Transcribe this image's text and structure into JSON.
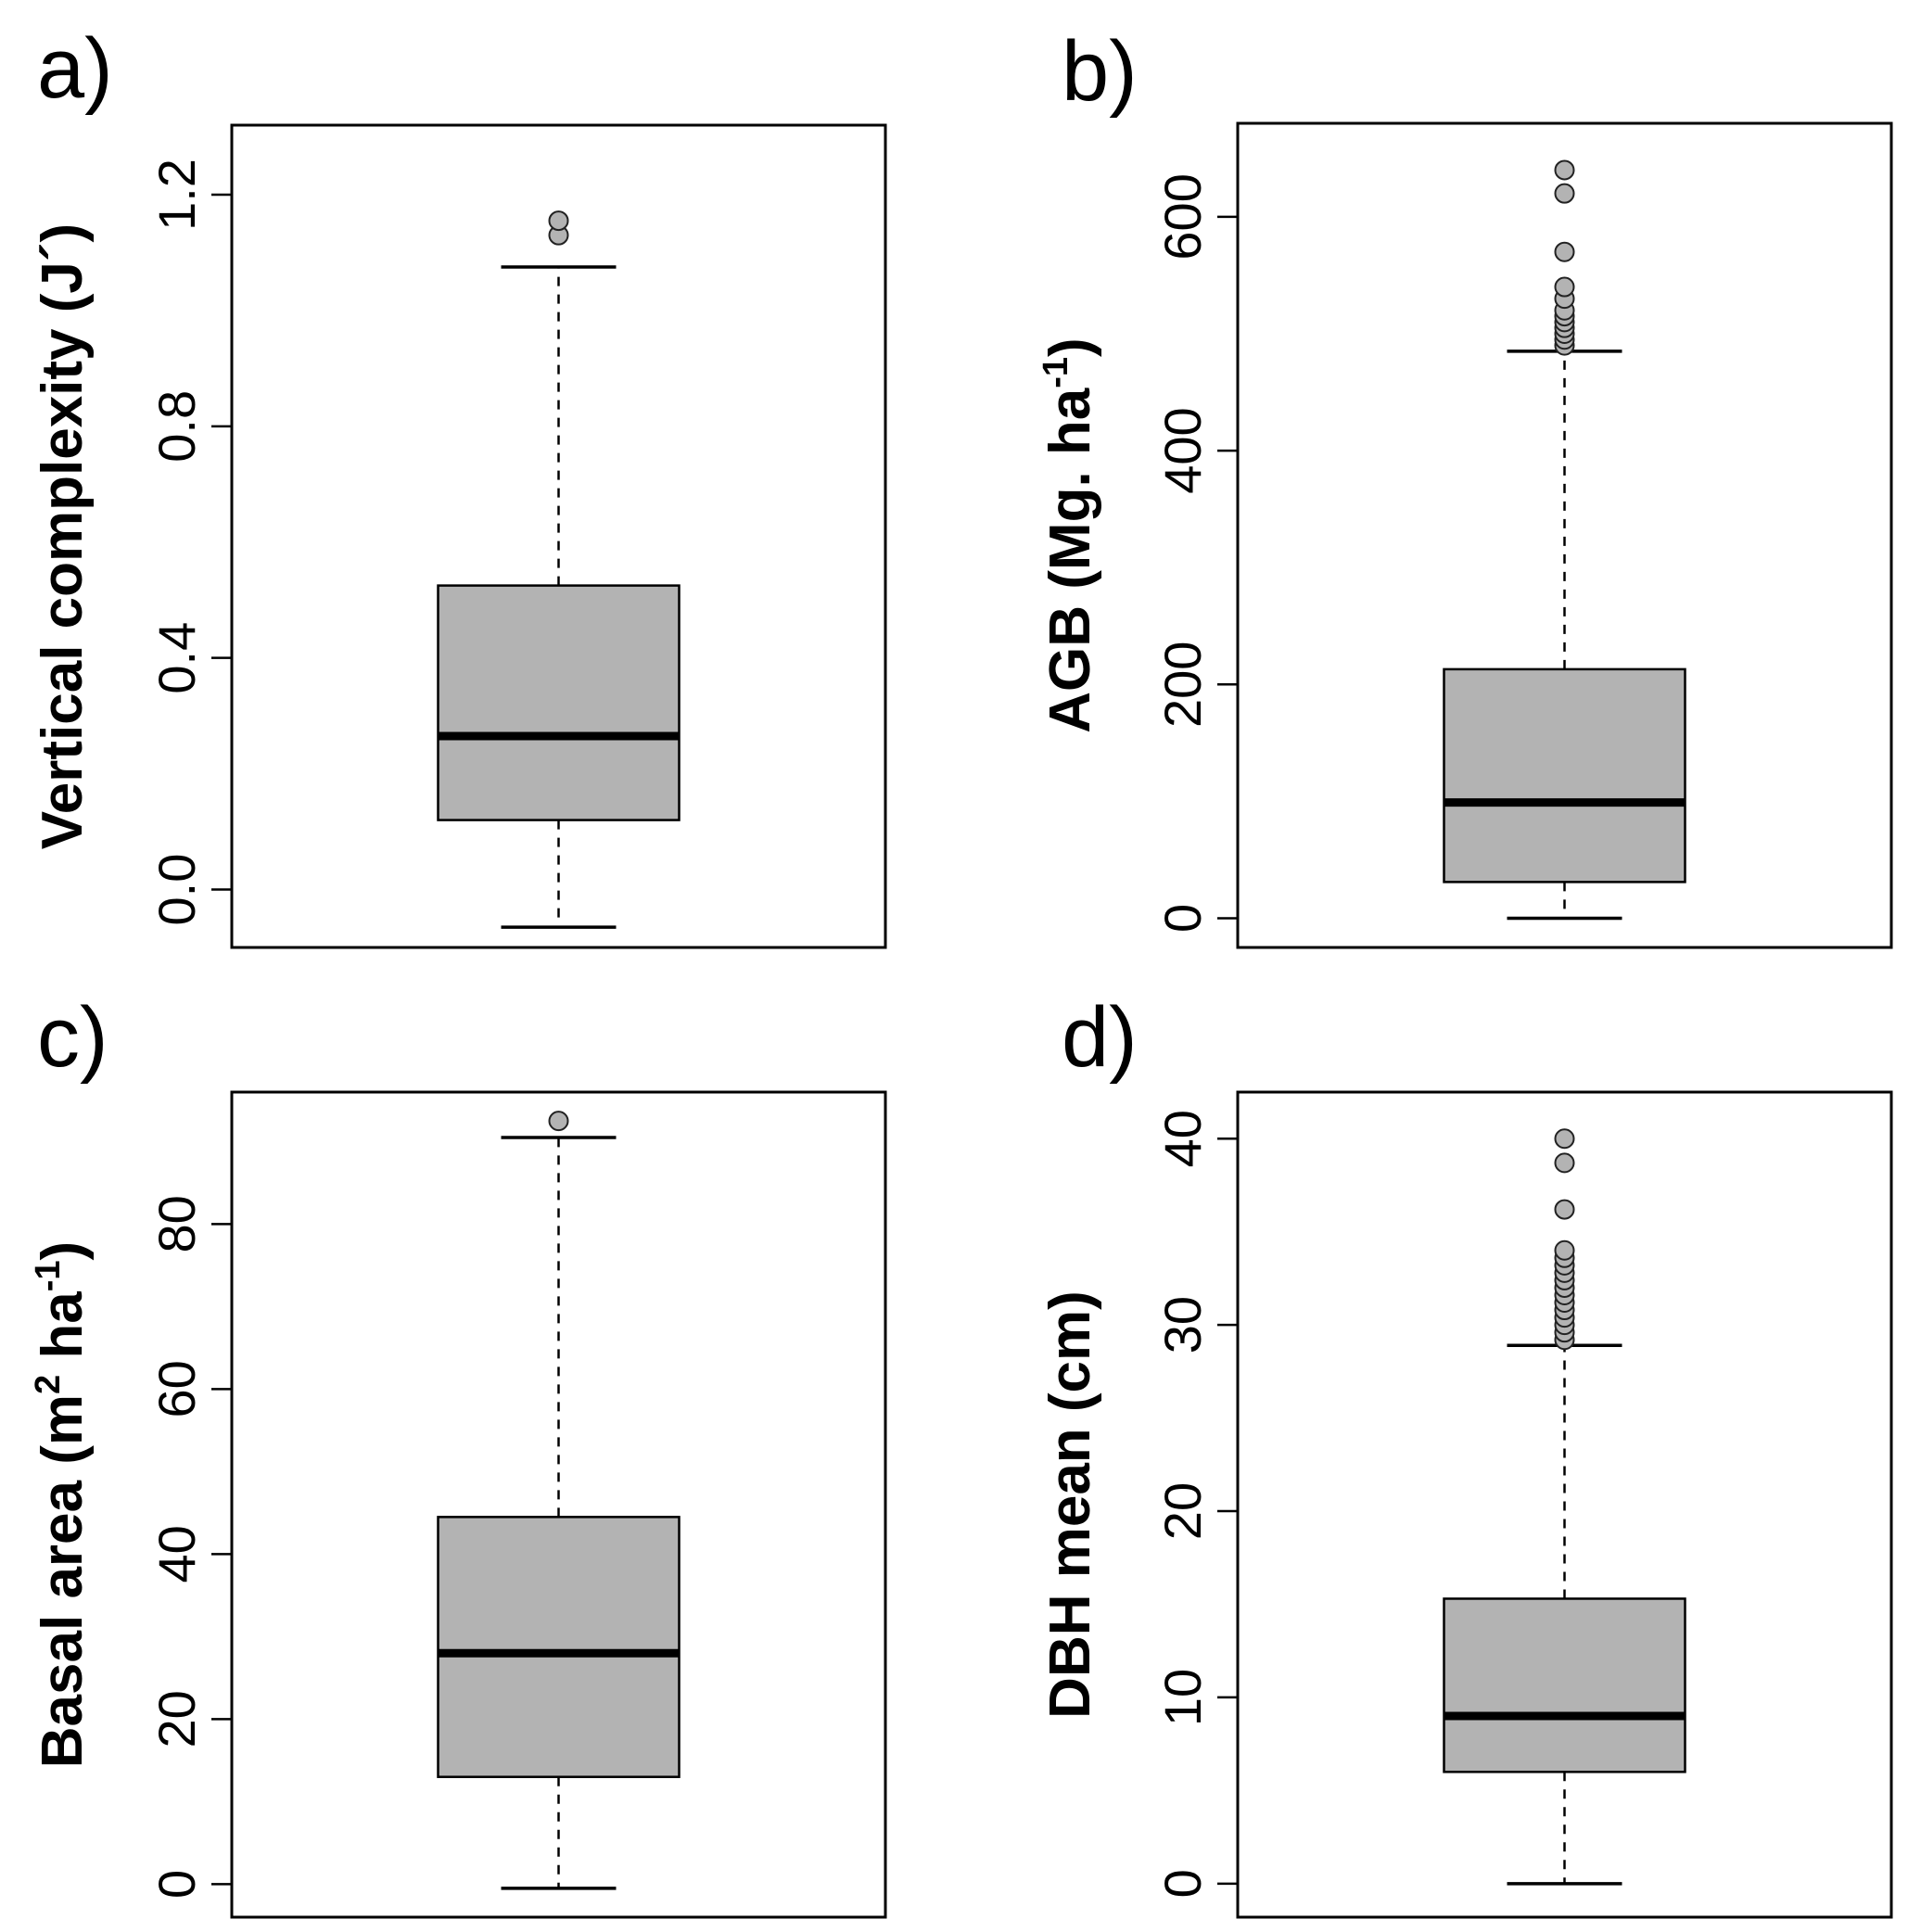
{
  "chart_data": [
    {
      "type": "boxplot",
      "panel": "a)",
      "ylabel": "Vertical complexity (J´)",
      "ylabel_sup": "",
      "ylabel_after": "",
      "ylim": [
        -0.1,
        1.32
      ],
      "ticks": [
        0.0,
        0.4,
        0.8,
        1.2
      ],
      "tick_labels": [
        "0.0",
        "0.4",
        "0.8",
        "1.2"
      ],
      "stats": {
        "whisker_low": -0.065,
        "q1": 0.12,
        "median": 0.265,
        "q3": 0.525,
        "whisker_high": 1.075
      },
      "outliers": [
        1.13,
        1.155
      ]
    },
    {
      "type": "boxplot",
      "panel": "b)",
      "ylabel": "AGB (Mg. ha",
      "ylabel_sup": "-1",
      "ylabel_after": ")",
      "ylim": [
        -25,
        680
      ],
      "ticks": [
        0,
        200,
        400,
        600
      ],
      "tick_labels": [
        "0",
        "200",
        "400",
        "600"
      ],
      "stats": {
        "whisker_low": 0,
        "q1": 31,
        "median": 99,
        "q3": 213,
        "whisker_high": 485
      },
      "outliers": [
        490,
        495,
        500,
        505,
        510,
        515,
        520,
        530,
        540,
        570,
        620,
        640
      ]
    },
    {
      "type": "boxplot",
      "panel": "c)",
      "ylabel": "Basal area (m",
      "ylabel_sup": "2",
      "ylabel_mid": " ha",
      "ylabel_sup2": "-1",
      "ylabel_after": ")",
      "ylim": [
        -4,
        96
      ],
      "ticks": [
        0,
        20,
        40,
        60,
        80
      ],
      "tick_labels": [
        "0",
        "20",
        "40",
        "60",
        "80"
      ],
      "stats": {
        "whisker_low": -0.5,
        "q1": 13,
        "median": 28,
        "q3": 44.5,
        "whisker_high": 90.5
      },
      "outliers": [
        92.5
      ]
    },
    {
      "type": "boxplot",
      "panel": "d)",
      "ylabel": "DBH mean (cm)",
      "ylabel_sup": "",
      "ylabel_after": "",
      "ylim": [
        -1.8,
        42.5
      ],
      "ticks": [
        0,
        10,
        20,
        30,
        40
      ],
      "tick_labels": [
        "0",
        "10",
        "20",
        "30",
        "40"
      ],
      "stats": {
        "whisker_low": 0,
        "q1": 6,
        "median": 9,
        "q3": 15.3,
        "whisker_high": 28.9
      },
      "outliers": [
        29.2,
        29.6,
        30,
        30.4,
        30.8,
        31.2,
        31.6,
        32,
        32.4,
        32.8,
        33.2,
        33.6,
        34,
        36.2,
        38.7,
        40
      ]
    }
  ]
}
